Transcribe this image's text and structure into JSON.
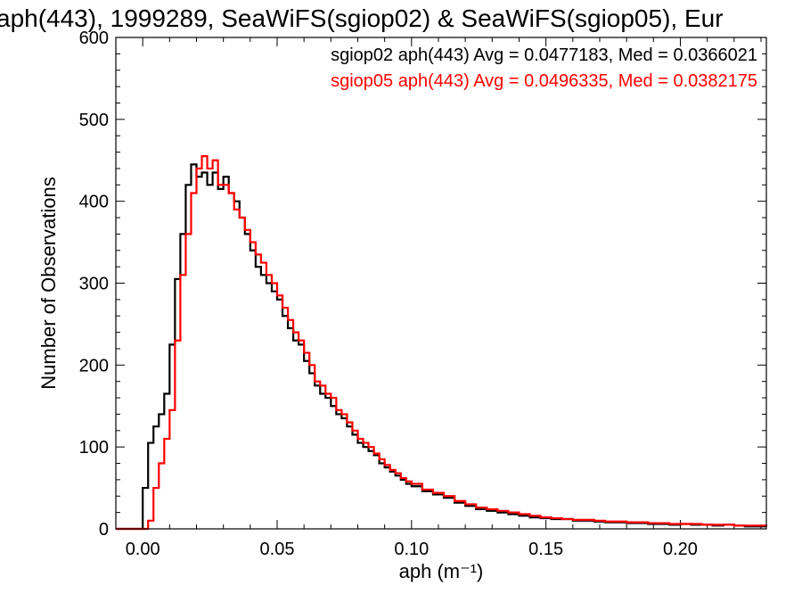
{
  "chart_data": {
    "type": "histogram",
    "title": "aph(443), 1999289, SeaWiFS(sgiop02) & SeaWiFS(sgiop05), Eur",
    "xlabel": "aph (m⁻¹)",
    "ylabel": "Number of Observations",
    "xlim": [
      -0.01,
      0.232
    ],
    "ylim": [
      0,
      600
    ],
    "xticks": [
      0.0,
      0.05,
      0.1,
      0.15,
      0.2
    ],
    "xtick_labels": [
      "0.00",
      "0.05",
      "0.10",
      "0.15",
      "0.20"
    ],
    "yticks": [
      0,
      100,
      200,
      300,
      400,
      500,
      600
    ],
    "ytick_labels": [
      "0",
      "100",
      "200",
      "300",
      "400",
      "500",
      "600"
    ],
    "grid": false,
    "legend_position": "top-right",
    "series": [
      {
        "name": "sgiop02 aph(443) Avg = 0.0477183, Med = 0.0366021",
        "color": "#000000",
        "points": [
          [
            -0.01,
            0
          ],
          [
            -0.002,
            0
          ],
          [
            0.0,
            50
          ],
          [
            0.002,
            105
          ],
          [
            0.004,
            125
          ],
          [
            0.006,
            140
          ],
          [
            0.008,
            165
          ],
          [
            0.01,
            225
          ],
          [
            0.012,
            305
          ],
          [
            0.014,
            360
          ],
          [
            0.016,
            420
          ],
          [
            0.018,
            445
          ],
          [
            0.02,
            430
          ],
          [
            0.022,
            435
          ],
          [
            0.024,
            420
          ],
          [
            0.026,
            435
          ],
          [
            0.028,
            415
          ],
          [
            0.03,
            430
          ],
          [
            0.032,
            410
          ],
          [
            0.034,
            400
          ],
          [
            0.036,
            380
          ],
          [
            0.038,
            360
          ],
          [
            0.04,
            340
          ],
          [
            0.042,
            320
          ],
          [
            0.044,
            310
          ],
          [
            0.046,
            300
          ],
          [
            0.048,
            290
          ],
          [
            0.05,
            280
          ],
          [
            0.052,
            260
          ],
          [
            0.054,
            245
          ],
          [
            0.056,
            230
          ],
          [
            0.058,
            225
          ],
          [
            0.06,
            205
          ],
          [
            0.062,
            190
          ],
          [
            0.064,
            175
          ],
          [
            0.066,
            165
          ],
          [
            0.068,
            160
          ],
          [
            0.07,
            150
          ],
          [
            0.072,
            140
          ],
          [
            0.074,
            135
          ],
          [
            0.076,
            125
          ],
          [
            0.078,
            115
          ],
          [
            0.08,
            105
          ],
          [
            0.082,
            100
          ],
          [
            0.084,
            95
          ],
          [
            0.086,
            90
          ],
          [
            0.088,
            80
          ],
          [
            0.09,
            75
          ],
          [
            0.092,
            70
          ],
          [
            0.094,
            65
          ],
          [
            0.096,
            60
          ],
          [
            0.098,
            55
          ],
          [
            0.1,
            52
          ],
          [
            0.104,
            46
          ],
          [
            0.108,
            42
          ],
          [
            0.112,
            38
          ],
          [
            0.116,
            32
          ],
          [
            0.12,
            28
          ],
          [
            0.124,
            24
          ],
          [
            0.128,
            22
          ],
          [
            0.132,
            20
          ],
          [
            0.136,
            18
          ],
          [
            0.14,
            16
          ],
          [
            0.144,
            14
          ],
          [
            0.148,
            13
          ],
          [
            0.152,
            12
          ],
          [
            0.156,
            12
          ],
          [
            0.16,
            10
          ],
          [
            0.164,
            10
          ],
          [
            0.168,
            9
          ],
          [
            0.172,
            8
          ],
          [
            0.176,
            8
          ],
          [
            0.18,
            7
          ],
          [
            0.184,
            7
          ],
          [
            0.188,
            6
          ],
          [
            0.192,
            6
          ],
          [
            0.196,
            5
          ],
          [
            0.2,
            6
          ],
          [
            0.204,
            5
          ],
          [
            0.208,
            5
          ],
          [
            0.212,
            4
          ],
          [
            0.216,
            5
          ],
          [
            0.22,
            4
          ],
          [
            0.224,
            3
          ],
          [
            0.228,
            3
          ],
          [
            0.232,
            3
          ]
        ]
      },
      {
        "name": "sgiop05 aph(443) Avg = 0.0496335, Med = 0.0382175",
        "color": "#ff0000",
        "points": [
          [
            -0.01,
            0
          ],
          [
            0.0,
            0
          ],
          [
            0.002,
            10
          ],
          [
            0.004,
            50
          ],
          [
            0.006,
            80
          ],
          [
            0.008,
            110
          ],
          [
            0.01,
            145
          ],
          [
            0.012,
            230
          ],
          [
            0.014,
            310
          ],
          [
            0.016,
            360
          ],
          [
            0.018,
            410
          ],
          [
            0.02,
            440
          ],
          [
            0.022,
            455
          ],
          [
            0.024,
            440
          ],
          [
            0.026,
            450
          ],
          [
            0.028,
            420
          ],
          [
            0.03,
            420
          ],
          [
            0.032,
            410
          ],
          [
            0.034,
            390
          ],
          [
            0.036,
            380
          ],
          [
            0.038,
            365
          ],
          [
            0.04,
            350
          ],
          [
            0.042,
            335
          ],
          [
            0.044,
            325
          ],
          [
            0.046,
            310
          ],
          [
            0.048,
            300
          ],
          [
            0.05,
            285
          ],
          [
            0.052,
            270
          ],
          [
            0.054,
            255
          ],
          [
            0.056,
            240
          ],
          [
            0.058,
            230
          ],
          [
            0.06,
            215
          ],
          [
            0.062,
            200
          ],
          [
            0.064,
            180
          ],
          [
            0.066,
            175
          ],
          [
            0.068,
            165
          ],
          [
            0.07,
            160
          ],
          [
            0.072,
            145
          ],
          [
            0.074,
            140
          ],
          [
            0.076,
            130
          ],
          [
            0.078,
            120
          ],
          [
            0.08,
            110
          ],
          [
            0.082,
            105
          ],
          [
            0.084,
            100
          ],
          [
            0.086,
            92
          ],
          [
            0.088,
            85
          ],
          [
            0.09,
            78
          ],
          [
            0.092,
            72
          ],
          [
            0.094,
            68
          ],
          [
            0.096,
            62
          ],
          [
            0.098,
            58
          ],
          [
            0.1,
            55
          ],
          [
            0.104,
            48
          ],
          [
            0.108,
            44
          ],
          [
            0.112,
            40
          ],
          [
            0.116,
            34
          ],
          [
            0.12,
            30
          ],
          [
            0.124,
            26
          ],
          [
            0.128,
            24
          ],
          [
            0.132,
            22
          ],
          [
            0.136,
            20
          ],
          [
            0.14,
            18
          ],
          [
            0.144,
            16
          ],
          [
            0.148,
            14
          ],
          [
            0.152,
            13
          ],
          [
            0.156,
            12
          ],
          [
            0.16,
            11
          ],
          [
            0.164,
            11
          ],
          [
            0.168,
            10
          ],
          [
            0.172,
            9
          ],
          [
            0.176,
            9
          ],
          [
            0.18,
            8
          ],
          [
            0.184,
            8
          ],
          [
            0.188,
            7
          ],
          [
            0.192,
            7
          ],
          [
            0.196,
            6
          ],
          [
            0.2,
            6
          ],
          [
            0.204,
            6
          ],
          [
            0.208,
            5
          ],
          [
            0.212,
            5
          ],
          [
            0.216,
            5
          ],
          [
            0.22,
            4
          ],
          [
            0.224,
            4
          ],
          [
            0.228,
            4
          ],
          [
            0.232,
            3
          ]
        ]
      }
    ]
  }
}
